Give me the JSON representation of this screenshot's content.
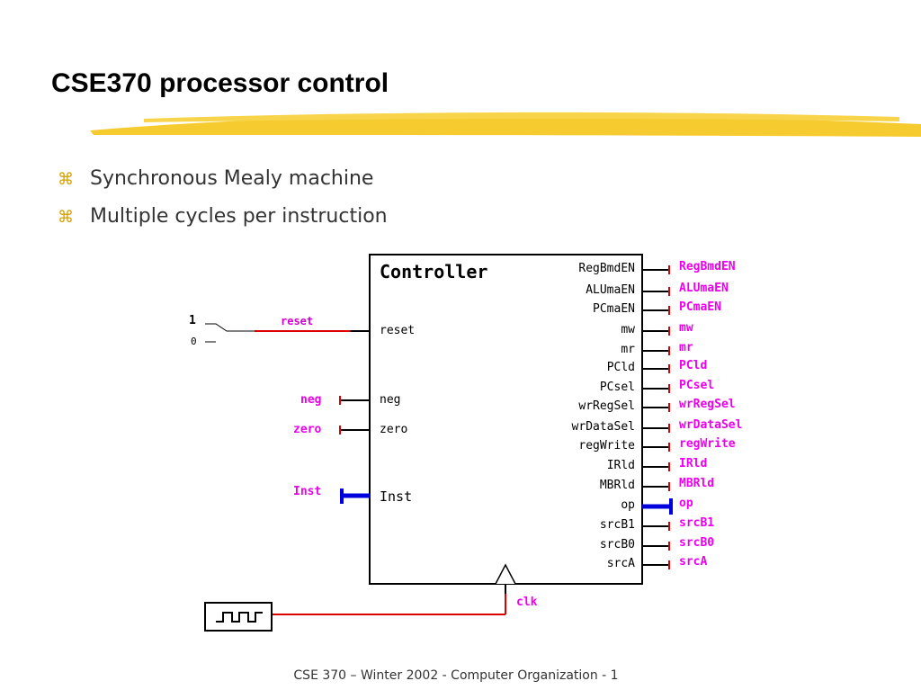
{
  "title": "CSE370 processor control",
  "bullets": [
    "Synchronous Mealy machine",
    "Multiple cycles per instruction"
  ],
  "bullet_icon": "command-key-icon",
  "controller": {
    "name": "Controller",
    "inputs": [
      "reset",
      "neg",
      "zero",
      "Inst"
    ],
    "outputs": [
      "RegBmdEN",
      "ALUmaEN",
      "PCmaEN",
      "mw",
      "mr",
      "PCld",
      "PCsel",
      "wrRegSel",
      "wrDataSel",
      "regWrite",
      "IRld",
      "MBRld",
      "op",
      "srcB1",
      "srcB0",
      "srcA"
    ]
  },
  "input_signals": [
    "reset",
    "neg",
    "zero",
    "Inst"
  ],
  "switch_labels": [
    "1",
    "0"
  ],
  "clock_label": "clk",
  "footer": "CSE 370 – Winter 2002 - Computer Organization - 1",
  "colors": {
    "signal": "#ee00ee",
    "wire_red": "#dd0000",
    "bus": "#0000dd",
    "highlight": "#f5c518"
  }
}
